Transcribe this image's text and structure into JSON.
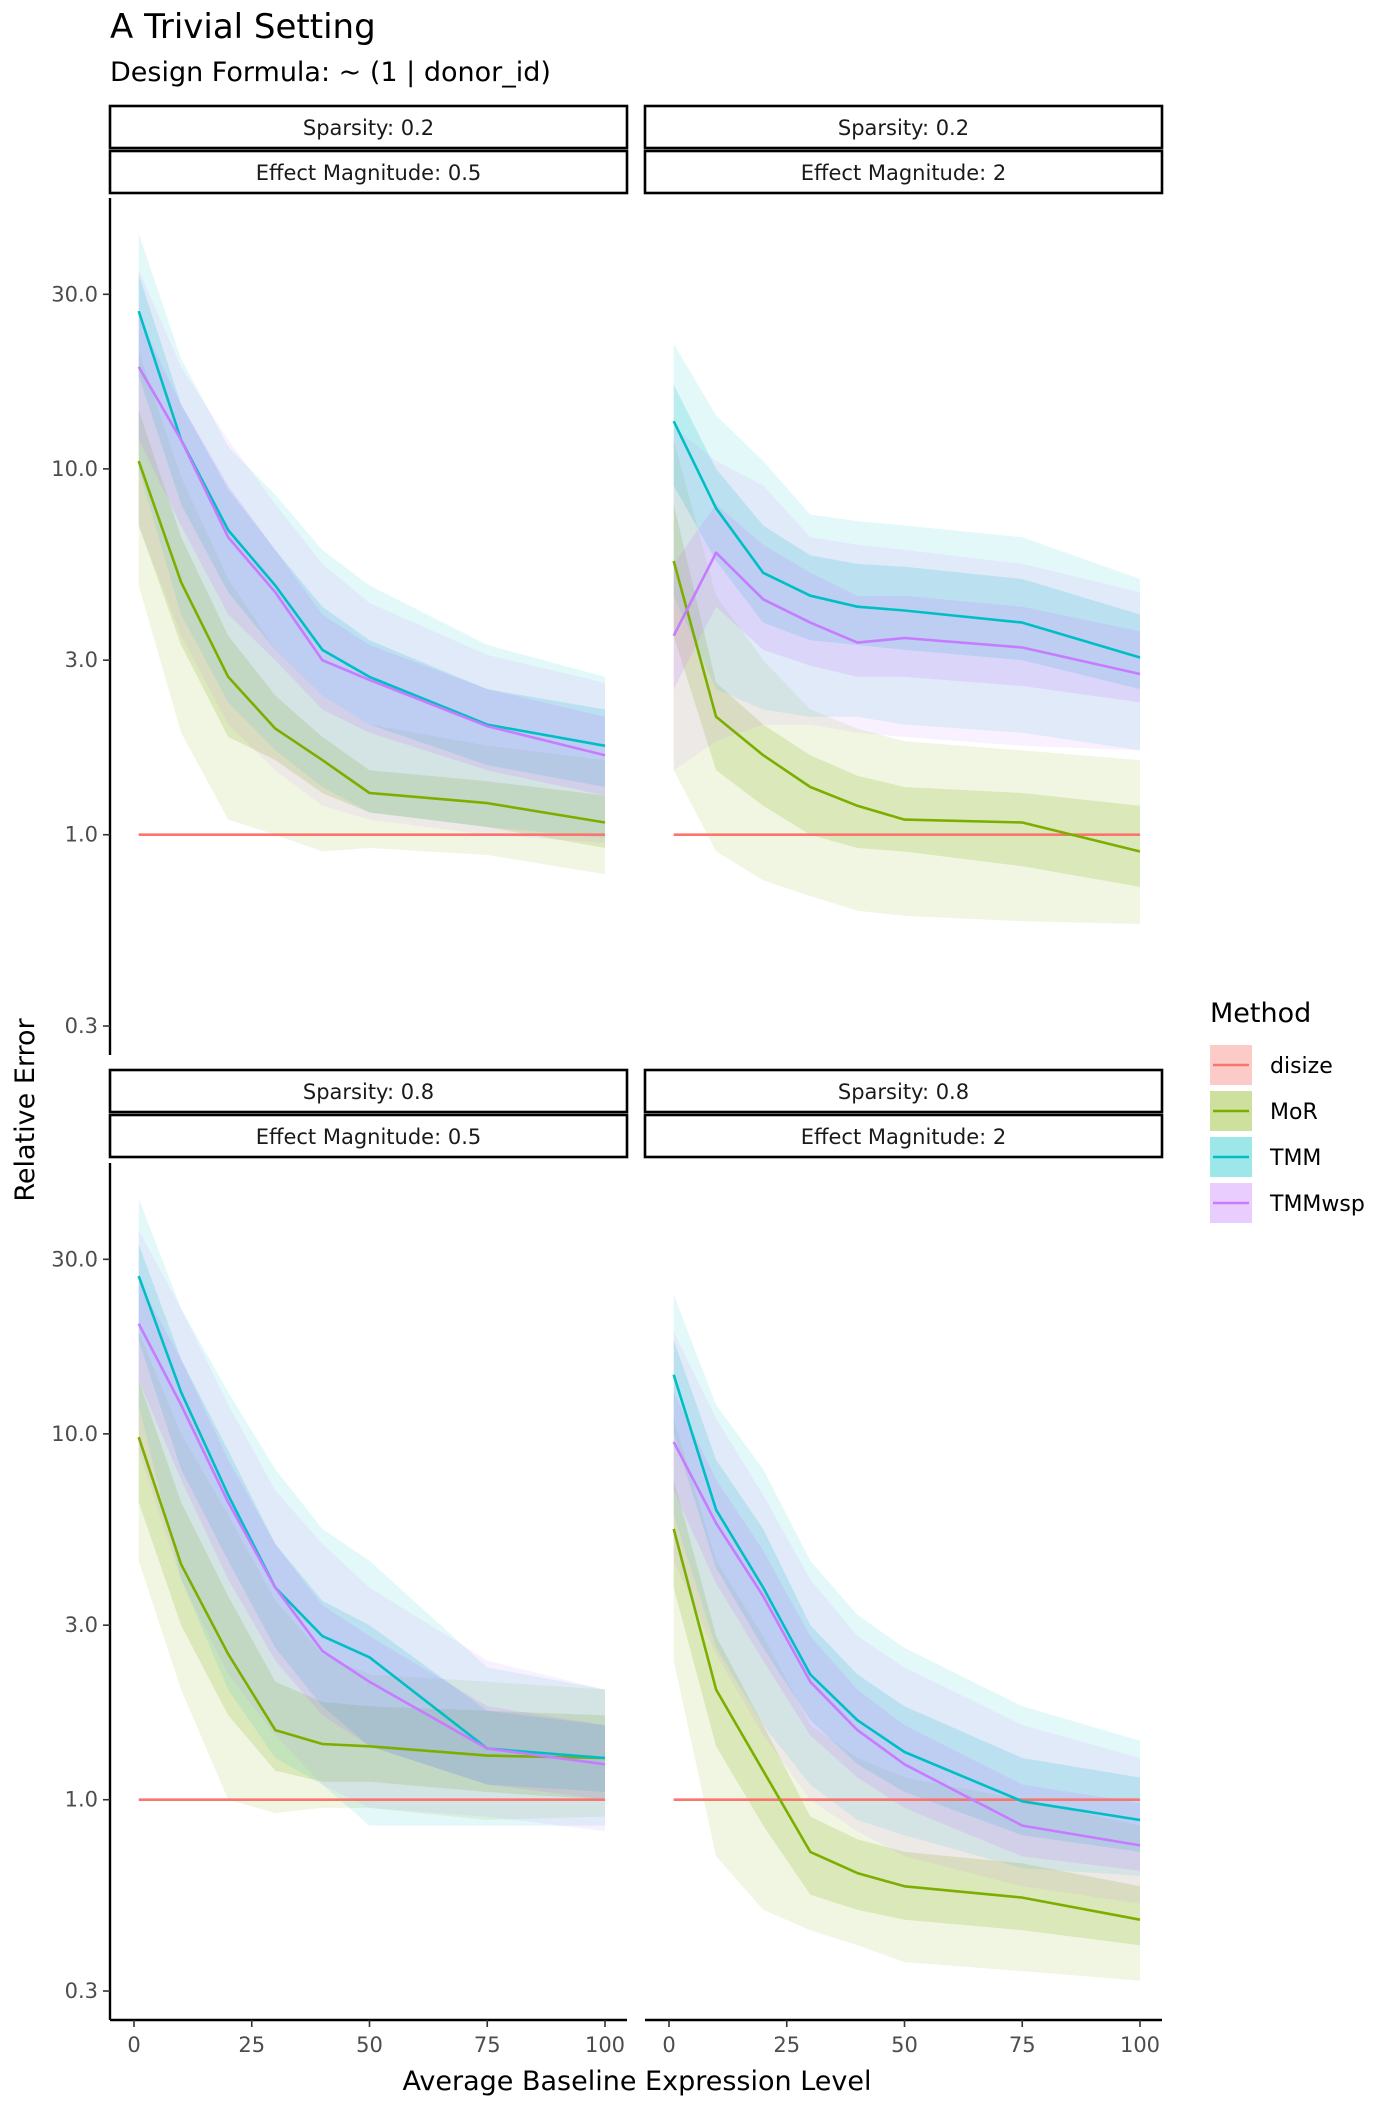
{
  "chart_data": {
    "type": "line",
    "title": "A Trivial Setting",
    "subtitle": "Design Formula: ~ (1 | donor_id)",
    "xlabel": "Average Baseline Expression Level",
    "ylabel": "Relative Error",
    "y_scale": "log10",
    "xlim": [
      0,
      100
    ],
    "ylim": [
      0.25,
      55
    ],
    "x_ticks": [
      0,
      25,
      50,
      75,
      100
    ],
    "x_tick_labels": [
      "0",
      "25",
      "50",
      "75",
      "100"
    ],
    "y_ticks": [
      0.3,
      1.0,
      3.0,
      10.0,
      30.0
    ],
    "y_tick_labels": [
      "0.3",
      "1.0",
      "3.0",
      "10.0",
      "30.0"
    ],
    "x": [
      1,
      10,
      20,
      30,
      40,
      50,
      75,
      100
    ],
    "legend": {
      "title": "Method",
      "position": "right"
    },
    "methods": [
      {
        "name": "disize",
        "color": "#F8766D"
      },
      {
        "name": "MoR",
        "color": "#7CAE00"
      },
      {
        "name": "TMM",
        "color": "#00BFC4"
      },
      {
        "name": "TMMwsp",
        "color": "#C77CFF"
      }
    ],
    "panels": [
      {
        "strip_sparsity": "Sparsity: 0.2",
        "strip_effect": "Effect Magnitude: 0.5",
        "series": [
          {
            "name": "disize",
            "values": [
              1.0,
              1.0,
              1.0,
              1.0,
              1.0,
              1.0,
              1.0,
              1.0
            ],
            "inner_low": [
              0.99,
              0.99,
              0.99,
              0.99,
              0.99,
              0.99,
              0.99,
              0.99
            ],
            "inner_high": [
              1.01,
              1.01,
              1.01,
              1.01,
              1.01,
              1.01,
              1.01,
              1.01
            ],
            "outer_low": [
              0.98,
              0.98,
              0.98,
              0.98,
              0.98,
              0.98,
              0.98,
              0.98
            ],
            "outer_high": [
              1.02,
              1.02,
              1.02,
              1.02,
              1.02,
              1.02,
              1.02,
              1.02
            ]
          },
          {
            "name": "MoR",
            "values": [
              10.5,
              4.9,
              2.7,
              1.95,
              1.6,
              1.3,
              1.22,
              1.08
            ],
            "inner_low": [
              7.0,
              3.3,
              1.85,
              1.6,
              1.3,
              1.15,
              1.05,
              0.92
            ],
            "inner_high": [
              14.5,
              6.5,
              3.5,
              2.4,
              1.85,
              1.5,
              1.4,
              1.28
            ],
            "outer_low": [
              4.8,
              1.9,
              1.1,
              1.0,
              0.9,
              0.92,
              0.88,
              0.78
            ],
            "outer_high": [
              21.0,
              9.5,
              5.0,
              3.2,
              2.4,
              2.0,
              1.75,
              1.6
            ]
          },
          {
            "name": "TMM",
            "values": [
              27.0,
              12.0,
              6.8,
              4.8,
              3.2,
              2.7,
              2.0,
              1.75
            ],
            "inner_low": [
              18.0,
              8.0,
              4.6,
              3.2,
              2.4,
              2.0,
              1.55,
              1.35
            ],
            "inner_high": [
              34.0,
              15.0,
              8.8,
              6.0,
              4.2,
              3.4,
              2.5,
              2.2
            ],
            "outer_low": [
              10.0,
              4.0,
              2.3,
              1.7,
              1.35,
              1.15,
              1.05,
              0.98
            ],
            "outer_high": [
              44.0,
              20.0,
              11.5,
              8.5,
              6.0,
              4.8,
              3.3,
              2.7
            ]
          },
          {
            "name": "TMMwsp",
            "values": [
              19.0,
              12.0,
              6.5,
              4.6,
              3.0,
              2.65,
              1.98,
              1.65
            ],
            "inner_low": [
              12.0,
              7.0,
              4.0,
              3.0,
              2.2,
              1.9,
              1.5,
              1.28
            ],
            "inner_high": [
              26.0,
              15.0,
              9.0,
              6.0,
              4.0,
              3.3,
              2.5,
              2.1
            ],
            "outer_low": [
              7.0,
              3.5,
              2.0,
              1.5,
              1.2,
              1.1,
              1.0,
              0.95
            ],
            "outer_high": [
              35.0,
              19.0,
              12.0,
              8.0,
              5.5,
              4.3,
              3.1,
              2.6
            ]
          }
        ]
      },
      {
        "strip_sparsity": "Sparsity: 0.2",
        "strip_effect": "Effect Magnitude: 2",
        "series": [
          {
            "name": "disize",
            "values": [
              1.0,
              1.0,
              1.0,
              1.0,
              1.0,
              1.0,
              1.0,
              1.0
            ],
            "inner_low": [
              0.99,
              0.99,
              0.99,
              0.99,
              0.99,
              0.99,
              0.99,
              0.99
            ],
            "inner_high": [
              1.01,
              1.01,
              1.01,
              1.01,
              1.01,
              1.01,
              1.01,
              1.01
            ],
            "outer_low": [
              0.98,
              0.98,
              0.98,
              0.98,
              0.98,
              0.98,
              0.98,
              0.98
            ],
            "outer_high": [
              1.02,
              1.02,
              1.02,
              1.02,
              1.02,
              1.02,
              1.02,
              1.02
            ]
          },
          {
            "name": "MoR",
            "values": [
              5.6,
              2.1,
              1.65,
              1.35,
              1.2,
              1.1,
              1.08,
              0.9
            ],
            "inner_low": [
              3.5,
              1.5,
              1.2,
              1.0,
              0.92,
              0.9,
              0.82,
              0.72
            ],
            "inner_high": [
              8.0,
              2.6,
              2.0,
              1.65,
              1.45,
              1.35,
              1.3,
              1.2
            ],
            "outer_low": [
              1.5,
              0.9,
              0.75,
              0.68,
              0.62,
              0.6,
              0.58,
              0.57
            ],
            "outer_high": [
              12.0,
              4.5,
              3.0,
              2.2,
              1.95,
              1.8,
              1.7,
              1.6
            ]
          },
          {
            "name": "TMM",
            "values": [
              13.5,
              7.8,
              5.2,
              4.5,
              4.2,
              4.1,
              3.8,
              3.05
            ],
            "inner_low": [
              9.0,
              5.6,
              3.8,
              3.4,
              3.3,
              3.2,
              3.0,
              2.5
            ],
            "inner_high": [
              17.0,
              10.0,
              7.0,
              5.8,
              5.5,
              5.4,
              5.0,
              4.0
            ],
            "outer_low": [
              4.5,
              2.5,
              2.2,
              2.1,
              2.1,
              2.0,
              1.9,
              1.7
            ],
            "outer_high": [
              22.0,
              14.0,
              10.5,
              7.5,
              7.2,
              7.0,
              6.5,
              5.0
            ]
          },
          {
            "name": "TMMwsp",
            "values": [
              3.5,
              5.9,
              4.4,
              3.8,
              3.35,
              3.45,
              3.25,
              2.75
            ],
            "inner_low": [
              2.5,
              4.2,
              3.2,
              2.9,
              2.7,
              2.7,
              2.55,
              2.3
            ],
            "inner_high": [
              5.5,
              8.0,
              6.2,
              5.2,
              4.5,
              4.5,
              4.2,
              3.6
            ],
            "outer_low": [
              1.5,
              1.8,
              2.0,
              2.0,
              1.9,
              1.85,
              1.75,
              1.7
            ],
            "outer_high": [
              13.0,
              10.5,
              9.0,
              6.5,
              6.2,
              6.0,
              5.5,
              4.6
            ]
          }
        ]
      },
      {
        "strip_sparsity": "Sparsity: 0.8",
        "strip_effect": "Effect Magnitude: 0.5",
        "series": [
          {
            "name": "disize",
            "values": [
              1.0,
              1.0,
              1.0,
              1.0,
              1.0,
              1.0,
              1.0,
              1.0
            ],
            "inner_low": [
              0.99,
              0.99,
              0.99,
              0.99,
              0.99,
              0.99,
              0.99,
              0.99
            ],
            "inner_high": [
              1.01,
              1.01,
              1.01,
              1.01,
              1.01,
              1.01,
              1.01,
              1.01
            ],
            "outer_low": [
              0.98,
              0.98,
              0.98,
              0.98,
              0.98,
              0.98,
              0.98,
              0.98
            ],
            "outer_high": [
              1.02,
              1.02,
              1.02,
              1.02,
              1.02,
              1.02,
              1.02,
              1.02
            ]
          },
          {
            "name": "MoR",
            "values": [
              9.8,
              4.4,
              2.5,
              1.55,
              1.42,
              1.4,
              1.32,
              1.3
            ],
            "inner_low": [
              6.5,
              3.0,
              1.7,
              1.2,
              1.12,
              1.12,
              1.05,
              1.0
            ],
            "inner_high": [
              14.0,
              6.5,
              3.6,
              2.1,
              1.85,
              1.8,
              1.75,
              1.7
            ],
            "outer_low": [
              4.5,
              2.0,
              1.0,
              0.92,
              0.95,
              0.95,
              0.88,
              0.9
            ],
            "outer_high": [
              19.0,
              10.0,
              6.0,
              3.5,
              2.5,
              2.2,
              2.1,
              2.0
            ]
          },
          {
            "name": "TMM",
            "values": [
              27.0,
              13.0,
              6.8,
              3.8,
              2.8,
              2.45,
              1.38,
              1.3
            ],
            "inner_low": [
              18.0,
              8.0,
              4.5,
              2.6,
              1.8,
              1.4,
              1.1,
              1.05
            ],
            "inner_high": [
              33.0,
              16.0,
              9.0,
              5.0,
              3.5,
              3.0,
              1.75,
              1.6
            ],
            "outer_low": [
              12.0,
              4.0,
              2.0,
              1.3,
              1.1,
              0.85,
              0.85,
              0.85
            ],
            "outer_high": [
              44.0,
              22.0,
              13.0,
              8.0,
              5.5,
              4.5,
              2.3,
              2.0
            ]
          },
          {
            "name": "TMMwsp",
            "values": [
              20.0,
              12.0,
              6.5,
              3.8,
              2.55,
              2.1,
              1.38,
              1.25
            ],
            "inner_low": [
              14.0,
              7.5,
              4.0,
              2.4,
              1.7,
              1.4,
              1.1,
              1.0
            ],
            "inner_high": [
              26.0,
              16.0,
              8.5,
              5.0,
              3.4,
              2.8,
              1.8,
              1.6
            ],
            "outer_low": [
              9.0,
              4.0,
              2.2,
              1.5,
              1.1,
              0.95,
              0.9,
              0.82
            ],
            "outer_high": [
              36.0,
              22.0,
              12.0,
              7.0,
              5.0,
              3.8,
              2.4,
              2.0
            ]
          }
        ]
      },
      {
        "strip_sparsity": "Sparsity: 0.8",
        "strip_effect": "Effect Magnitude: 2",
        "series": [
          {
            "name": "disize",
            "values": [
              1.0,
              1.0,
              1.0,
              1.0,
              1.0,
              1.0,
              1.0,
              1.0
            ],
            "inner_low": [
              0.99,
              0.99,
              0.99,
              0.99,
              0.99,
              0.99,
              0.99,
              0.99
            ],
            "inner_high": [
              1.01,
              1.01,
              1.01,
              1.01,
              1.01,
              1.01,
              1.01,
              1.01
            ],
            "outer_low": [
              0.98,
              0.98,
              0.98,
              0.98,
              0.98,
              0.98,
              0.98,
              0.98
            ],
            "outer_high": [
              1.02,
              1.02,
              1.02,
              1.02,
              1.02,
              1.02,
              1.02,
              1.02
            ]
          },
          {
            "name": "MoR",
            "values": [
              5.5,
              2.0,
              1.2,
              0.72,
              0.63,
              0.58,
              0.54,
              0.47
            ],
            "inner_low": [
              3.8,
              1.4,
              0.85,
              0.55,
              0.5,
              0.47,
              0.44,
              0.4
            ],
            "inner_high": [
              7.5,
              2.8,
              1.6,
              0.9,
              0.78,
              0.72,
              0.67,
              0.58
            ],
            "outer_low": [
              2.4,
              0.7,
              0.5,
              0.44,
              0.4,
              0.36,
              0.34,
              0.32
            ],
            "outer_high": [
              11.0,
              4.5,
              2.8,
              1.6,
              1.3,
              1.15,
              1.0,
              0.85
            ]
          },
          {
            "name": "TMM",
            "values": [
              14.5,
              6.2,
              3.8,
              2.2,
              1.65,
              1.35,
              0.99,
              0.88
            ],
            "inner_low": [
              10.0,
              4.3,
              2.6,
              1.65,
              1.25,
              1.05,
              0.8,
              0.72
            ],
            "inner_high": [
              18.0,
              8.5,
              5.5,
              3.0,
              2.2,
              1.8,
              1.3,
              1.15
            ],
            "outer_low": [
              6.0,
              2.6,
              1.6,
              1.1,
              0.88,
              0.8,
              0.65,
              0.62
            ],
            "outer_high": [
              24.0,
              12.0,
              8.0,
              4.5,
              3.2,
              2.6,
              1.8,
              1.45
            ]
          },
          {
            "name": "TMMwsp",
            "values": [
              9.5,
              5.7,
              3.6,
              2.1,
              1.55,
              1.25,
              0.85,
              0.75
            ],
            "inner_low": [
              7.0,
              3.9,
              2.4,
              1.5,
              1.15,
              0.95,
              0.7,
              0.64
            ],
            "inner_high": [
              13.0,
              7.5,
              4.8,
              2.8,
              2.0,
              1.6,
              1.1,
              0.98
            ],
            "outer_low": [
              4.5,
              2.5,
              1.5,
              1.0,
              0.82,
              0.7,
              0.58,
              0.52
            ],
            "outer_high": [
              19.0,
              11.0,
              6.8,
              4.0,
              2.8,
              2.3,
              1.6,
              1.3
            ]
          }
        ]
      }
    ]
  }
}
